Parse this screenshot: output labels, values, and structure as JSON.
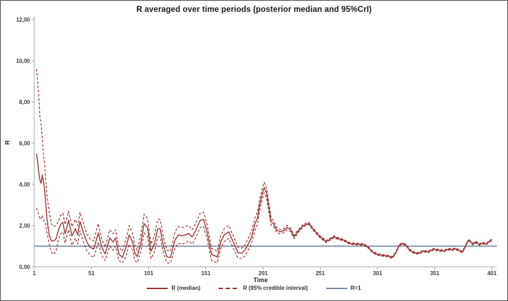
{
  "chart": {
    "title": "R averaged over time periods (posterior median and 95%CrI)",
    "x_axis": {
      "title": "Time",
      "tick_labels": [
        "1",
        "51",
        "101",
        "151",
        "201",
        "251",
        "301",
        "351",
        "401"
      ],
      "tick_values": [
        1,
        51,
        101,
        151,
        201,
        251,
        301,
        351,
        401
      ]
    },
    "y_axis": {
      "title": "R",
      "tick_labels": [
        "0,00",
        "2,00",
        "4,00",
        "6,00",
        "8,00",
        "10,00",
        "12,00"
      ],
      "tick_values": [
        0,
        2,
        4,
        6,
        8,
        10,
        12
      ]
    },
    "colors": {
      "series": "#9a3637",
      "reference": "#7a8ea2",
      "axis": "#a6a6a6",
      "tick_text": "#3f3f3f"
    }
  },
  "legend": {
    "items": [
      {
        "label": "R (median)",
        "style": "solid"
      },
      {
        "label": "R (95% credible interval)",
        "style": "dashed"
      },
      {
        "label": "R=1",
        "style": "ref"
      }
    ]
  },
  "chart_data": {
    "type": "line",
    "title": "R averaged over time periods (posterior median and 95%CrI)",
    "xlabel": "Time",
    "ylabel": "R",
    "xlim": [
      1,
      401
    ],
    "ylim": [
      0,
      12
    ],
    "grid": false,
    "legend_position": "bottom",
    "reference_line_y": 1,
    "x": [
      3,
      5,
      6,
      7,
      8,
      9,
      10,
      11,
      12,
      14,
      16,
      18,
      20,
      22,
      24,
      26,
      28,
      31,
      34,
      37,
      39,
      41,
      44,
      47,
      50,
      53,
      57,
      60,
      63,
      67,
      70,
      72,
      75,
      78,
      81,
      84,
      87,
      89,
      91,
      94,
      97,
      100,
      103,
      106,
      109,
      111,
      114,
      117,
      120,
      124,
      127,
      130,
      133,
      136,
      139,
      142,
      146,
      149,
      152,
      156,
      161,
      164,
      167,
      171,
      175,
      179,
      182,
      185,
      188,
      191,
      194,
      196,
      198,
      200,
      202,
      204,
      206,
      208,
      210,
      213,
      216,
      219,
      222,
      225,
      228,
      232,
      236,
      241,
      245,
      250,
      256,
      260,
      263,
      267,
      271,
      277,
      283,
      289,
      293,
      297,
      301,
      306,
      310,
      314,
      317,
      320,
      323,
      326,
      329,
      333,
      337,
      341,
      345,
      350,
      355,
      359,
      363,
      366,
      369,
      372,
      375,
      377,
      379,
      381,
      384,
      387,
      390,
      393,
      396,
      399,
      401
    ],
    "series": [
      {
        "name": "R (median)",
        "style": "solid",
        "values": [
          5.5,
          4.6,
          4.2,
          4.05,
          4.45,
          4.15,
          3.8,
          3.1,
          2.4,
          1.55,
          1.25,
          1.25,
          1.35,
          1.75,
          2.05,
          2.15,
          1.6,
          2.25,
          1.5,
          1.85,
          1.55,
          2.2,
          1.65,
          1.2,
          0.95,
          0.85,
          1.65,
          0.95,
          0.62,
          1.4,
          1.2,
          1.4,
          0.62,
          0.45,
          0.9,
          1.55,
          1.2,
          0.65,
          0.5,
          1.1,
          2.1,
          1.9,
          0.75,
          1.1,
          1.85,
          1.85,
          1.0,
          0.48,
          0.45,
          1.3,
          1.55,
          1.5,
          1.55,
          1.62,
          1.45,
          1.75,
          2.25,
          2.3,
          1.7,
          0.6,
          0.48,
          1.2,
          1.55,
          1.7,
          1.2,
          0.68,
          0.65,
          0.8,
          1.1,
          1.45,
          2.1,
          2.35,
          3.0,
          3.5,
          3.85,
          3.6,
          2.9,
          2.2,
          2.1,
          1.78,
          1.7,
          1.75,
          1.9,
          1.8,
          1.45,
          1.75,
          2.0,
          2.1,
          1.8,
          1.5,
          1.22,
          1.35,
          1.45,
          1.36,
          1.3,
          1.13,
          1.1,
          1.08,
          0.94,
          0.7,
          0.6,
          0.55,
          0.52,
          0.45,
          0.68,
          1.05,
          1.13,
          1.05,
          0.82,
          0.68,
          0.65,
          0.77,
          0.72,
          0.85,
          0.8,
          0.77,
          0.85,
          0.83,
          0.87,
          0.81,
          0.71,
          0.9,
          1.15,
          1.3,
          1.1,
          1.2,
          1.08,
          1.15,
          1.1,
          1.25,
          1.3
        ]
      },
      {
        "name": "R (95% credible interval) lower",
        "style": "dashed",
        "values": [
          2.85,
          2.5,
          2.3,
          2.35,
          2.5,
          2.3,
          2.15,
          2.1,
          1.7,
          1.1,
          0.7,
          0.6,
          0.75,
          1.3,
          1.6,
          1.7,
          1.15,
          1.8,
          1.05,
          1.4,
          1.1,
          1.75,
          1.2,
          0.8,
          0.55,
          0.45,
          1.2,
          0.55,
          0.3,
          1.0,
          0.8,
          1.0,
          0.3,
          0.18,
          0.5,
          1.1,
          0.8,
          0.3,
          0.2,
          0.7,
          1.65,
          1.45,
          0.4,
          0.7,
          1.45,
          1.45,
          0.62,
          0.2,
          0.18,
          0.9,
          1.15,
          1.1,
          1.15,
          1.25,
          1.1,
          1.4,
          1.9,
          1.95,
          1.35,
          0.3,
          0.2,
          0.88,
          1.22,
          1.38,
          0.9,
          0.42,
          0.4,
          0.52,
          0.82,
          1.15,
          1.8,
          2.05,
          2.72,
          3.22,
          3.6,
          3.35,
          2.68,
          2.02,
          1.95,
          1.66,
          1.6,
          1.65,
          1.8,
          1.71,
          1.37,
          1.68,
          1.94,
          2.05,
          1.75,
          1.45,
          1.17,
          1.3,
          1.4,
          1.32,
          1.26,
          1.09,
          1.06,
          1.04,
          0.9,
          0.66,
          0.56,
          0.51,
          0.48,
          0.41,
          0.64,
          1.01,
          1.09,
          1.01,
          0.78,
          0.64,
          0.61,
          0.73,
          0.68,
          0.81,
          0.76,
          0.73,
          0.81,
          0.79,
          0.83,
          0.77,
          0.67,
          0.86,
          1.11,
          1.26,
          1.06,
          1.16,
          1.04,
          1.11,
          1.06,
          1.21,
          1.26
        ]
      },
      {
        "name": "R (95% credible interval) upper",
        "style": "dashed",
        "values": [
          9.6,
          8.3,
          7.2,
          7.0,
          6.2,
          5.5,
          5.0,
          4.3,
          3.5,
          2.7,
          2.1,
          1.95,
          2.0,
          2.2,
          2.5,
          2.6,
          2.05,
          2.7,
          1.95,
          2.3,
          2.0,
          2.65,
          2.1,
          1.6,
          1.35,
          1.25,
          2.1,
          1.35,
          0.95,
          1.8,
          1.6,
          1.8,
          0.95,
          0.75,
          1.3,
          2.0,
          1.6,
          1.0,
          0.8,
          1.5,
          2.55,
          2.35,
          1.1,
          1.5,
          2.3,
          2.3,
          1.4,
          0.8,
          0.75,
          1.7,
          1.95,
          1.9,
          1.95,
          2.0,
          1.8,
          2.1,
          2.6,
          2.65,
          2.05,
          0.9,
          0.75,
          1.5,
          1.85,
          2.0,
          1.5,
          0.95,
          0.9,
          1.05,
          1.38,
          1.75,
          2.4,
          2.65,
          3.28,
          3.78,
          4.1,
          3.85,
          3.12,
          2.38,
          2.25,
          1.9,
          1.8,
          1.85,
          2.0,
          1.89,
          1.53,
          1.82,
          2.06,
          2.15,
          1.85,
          1.55,
          1.27,
          1.4,
          1.5,
          1.4,
          1.34,
          1.17,
          1.14,
          1.12,
          0.98,
          0.74,
          0.64,
          0.59,
          0.56,
          0.49,
          0.72,
          1.09,
          1.17,
          1.09,
          0.86,
          0.72,
          0.69,
          0.81,
          0.76,
          0.89,
          0.84,
          0.81,
          0.89,
          0.87,
          0.91,
          0.85,
          0.75,
          0.94,
          1.19,
          1.34,
          1.14,
          1.24,
          1.12,
          1.19,
          1.14,
          1.29,
          1.34
        ]
      },
      {
        "name": "R=1",
        "style": "reference",
        "values_constant": 1
      }
    ]
  }
}
